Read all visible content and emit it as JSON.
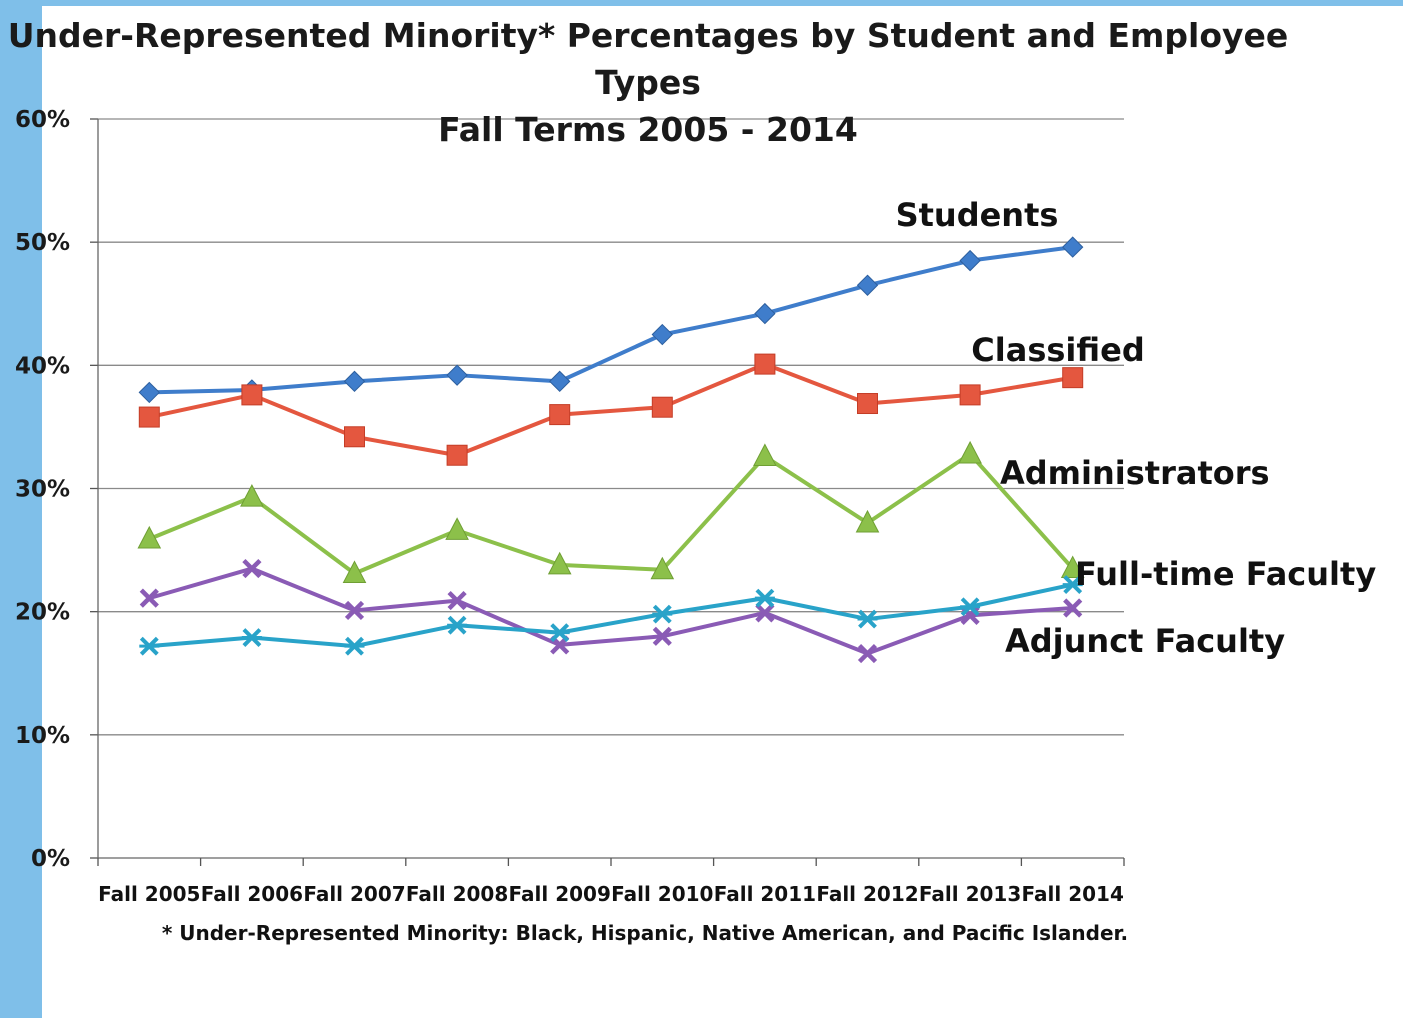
{
  "chart_data": {
    "type": "line",
    "title_lines": [
      "Under-Represented Minority* Percentages by Student and Employee",
      "Types",
      "Fall Terms 2005  - 2014"
    ],
    "footnote": "* Under-Represented Minority:  Black, Hispanic, Native American, and Pacific Islander.",
    "categories": [
      "Fall 2005",
      "Fall 2006",
      "Fall 2007",
      "Fall 2008",
      "Fall 2009",
      "Fall 2010",
      "Fall 2011",
      "Fall 2012",
      "Fall 2013",
      "Fall 2014"
    ],
    "y_ticks": [
      "0%",
      "10%",
      "20%",
      "30%",
      "40%",
      "50%",
      "60%"
    ],
    "ylim": [
      0,
      60
    ],
    "grid": true,
    "series": [
      {
        "name": "Students",
        "color": "#3f7dcb",
        "marker": "diamond",
        "values": [
          37.8,
          38.0,
          38.7,
          39.2,
          38.7,
          42.5,
          44.2,
          46.5,
          48.5,
          49.6
        ]
      },
      {
        "name": "Classified",
        "color": "#e4573f",
        "marker": "square",
        "values": [
          35.8,
          37.6,
          34.2,
          32.7,
          36.0,
          36.6,
          40.1,
          36.9,
          37.6,
          39.0
        ]
      },
      {
        "name": "Administrators",
        "color": "#8cc04a",
        "marker": "triangle",
        "values": [
          25.9,
          29.3,
          23.1,
          26.6,
          23.8,
          23.4,
          32.6,
          27.2,
          32.8,
          23.5
        ]
      },
      {
        "name": "Adjunct Faculty",
        "color": "#8a5bb5",
        "marker": "x",
        "values": [
          21.1,
          23.5,
          20.1,
          20.9,
          17.3,
          18.0,
          19.9,
          16.6,
          19.7,
          20.3
        ]
      },
      {
        "name": "Full-time Faculty",
        "color": "#29a3c9",
        "marker": "star",
        "values": [
          17.2,
          17.9,
          17.2,
          18.9,
          18.3,
          19.8,
          21.1,
          19.4,
          20.4,
          22.2
        ]
      }
    ]
  }
}
